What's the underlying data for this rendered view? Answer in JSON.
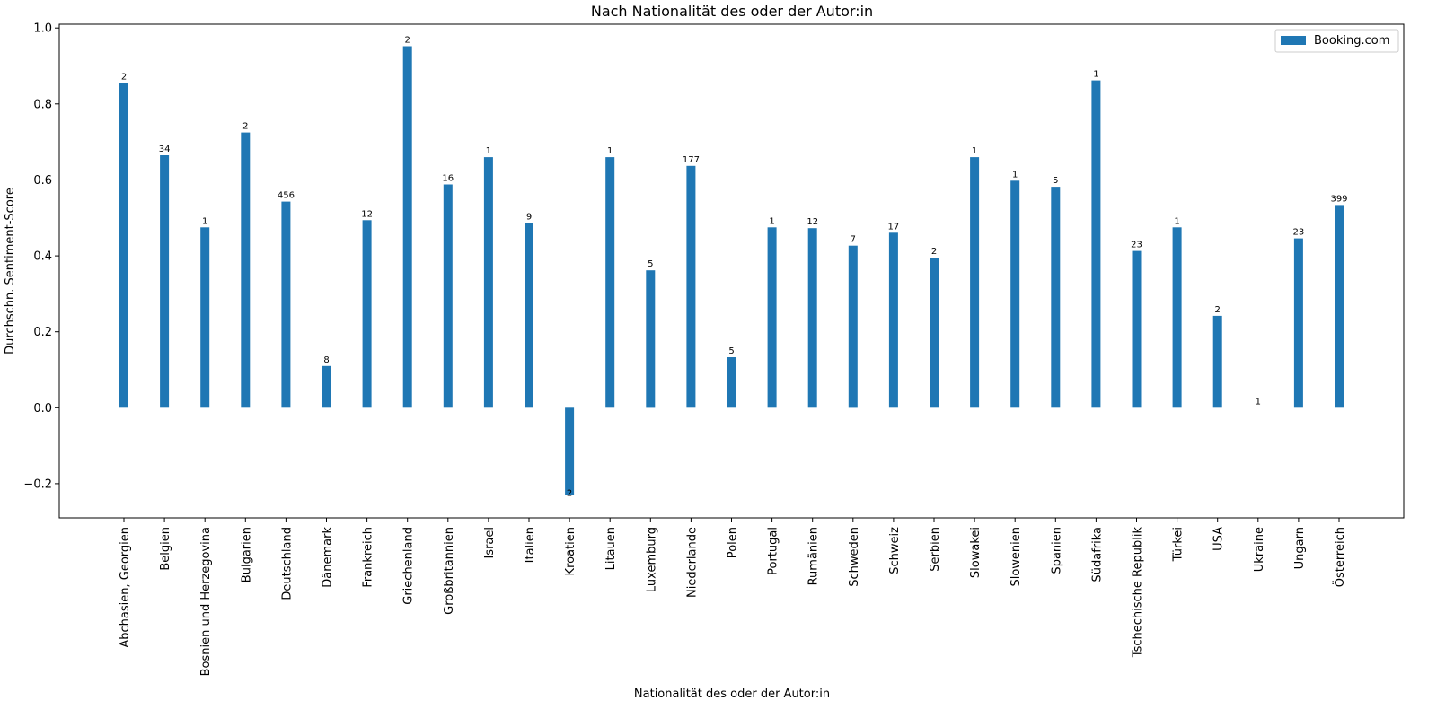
{
  "chart_data": {
    "type": "bar",
    "title": "Nach Nationalität des oder der Autor:in",
    "xlabel": "Nationalität des oder der Autor:in",
    "ylabel": "Durchschn. Sentiment-Score",
    "ylim": [
      -0.29,
      1.01
    ],
    "yticks": [
      -0.2,
      0.0,
      0.2,
      0.4,
      0.6,
      0.8,
      1.0
    ],
    "ytick_labels": [
      "−0.2",
      "0.0",
      "0.2",
      "0.4",
      "0.6",
      "0.8",
      "1.0"
    ],
    "legend_position": "top-right",
    "grid": false,
    "categories": [
      "Abchasien, Georgien",
      "Belgien",
      "Bosnien und Herzegovina",
      "Bulgarien",
      "Deutschland",
      "Dänemark",
      "Frankreich",
      "Griechenland",
      "Großbritannien",
      "Israel",
      "Italien",
      "Kroatien",
      "Litauen",
      "Luxemburg",
      "Niederlande",
      "Polen",
      "Portugal",
      "Rumänien",
      "Schweden",
      "Schweiz",
      "Serbien",
      "Slowakei",
      "Slowenien",
      "Spanien",
      "Südafrika",
      "Tschechische Republik",
      "Türkei",
      "USA",
      "Ukraine",
      "Ungarn",
      "Österreich"
    ],
    "series": [
      {
        "name": "Booking.com",
        "color": "#1f77b4",
        "values": [
          0.855,
          0.665,
          0.475,
          0.725,
          0.543,
          0.11,
          0.494,
          0.952,
          0.588,
          0.66,
          0.487,
          -0.23,
          0.66,
          0.362,
          0.637,
          0.133,
          0.475,
          0.473,
          0.427,
          0.461,
          0.395,
          0.66,
          0.598,
          0.582,
          0.862,
          0.413,
          0.475,
          0.242,
          0.0,
          0.446,
          0.534
        ],
        "data_labels": [
          "2",
          "34",
          "1",
          "2",
          "456",
          "8",
          "12",
          "2",
          "16",
          "1",
          "9",
          "2",
          "1",
          "5",
          "177",
          "5",
          "1",
          "12",
          "7",
          "17",
          "2",
          "1",
          "1",
          "5",
          "1",
          "23",
          "1",
          "2",
          "1",
          "23",
          "399"
        ]
      }
    ]
  }
}
